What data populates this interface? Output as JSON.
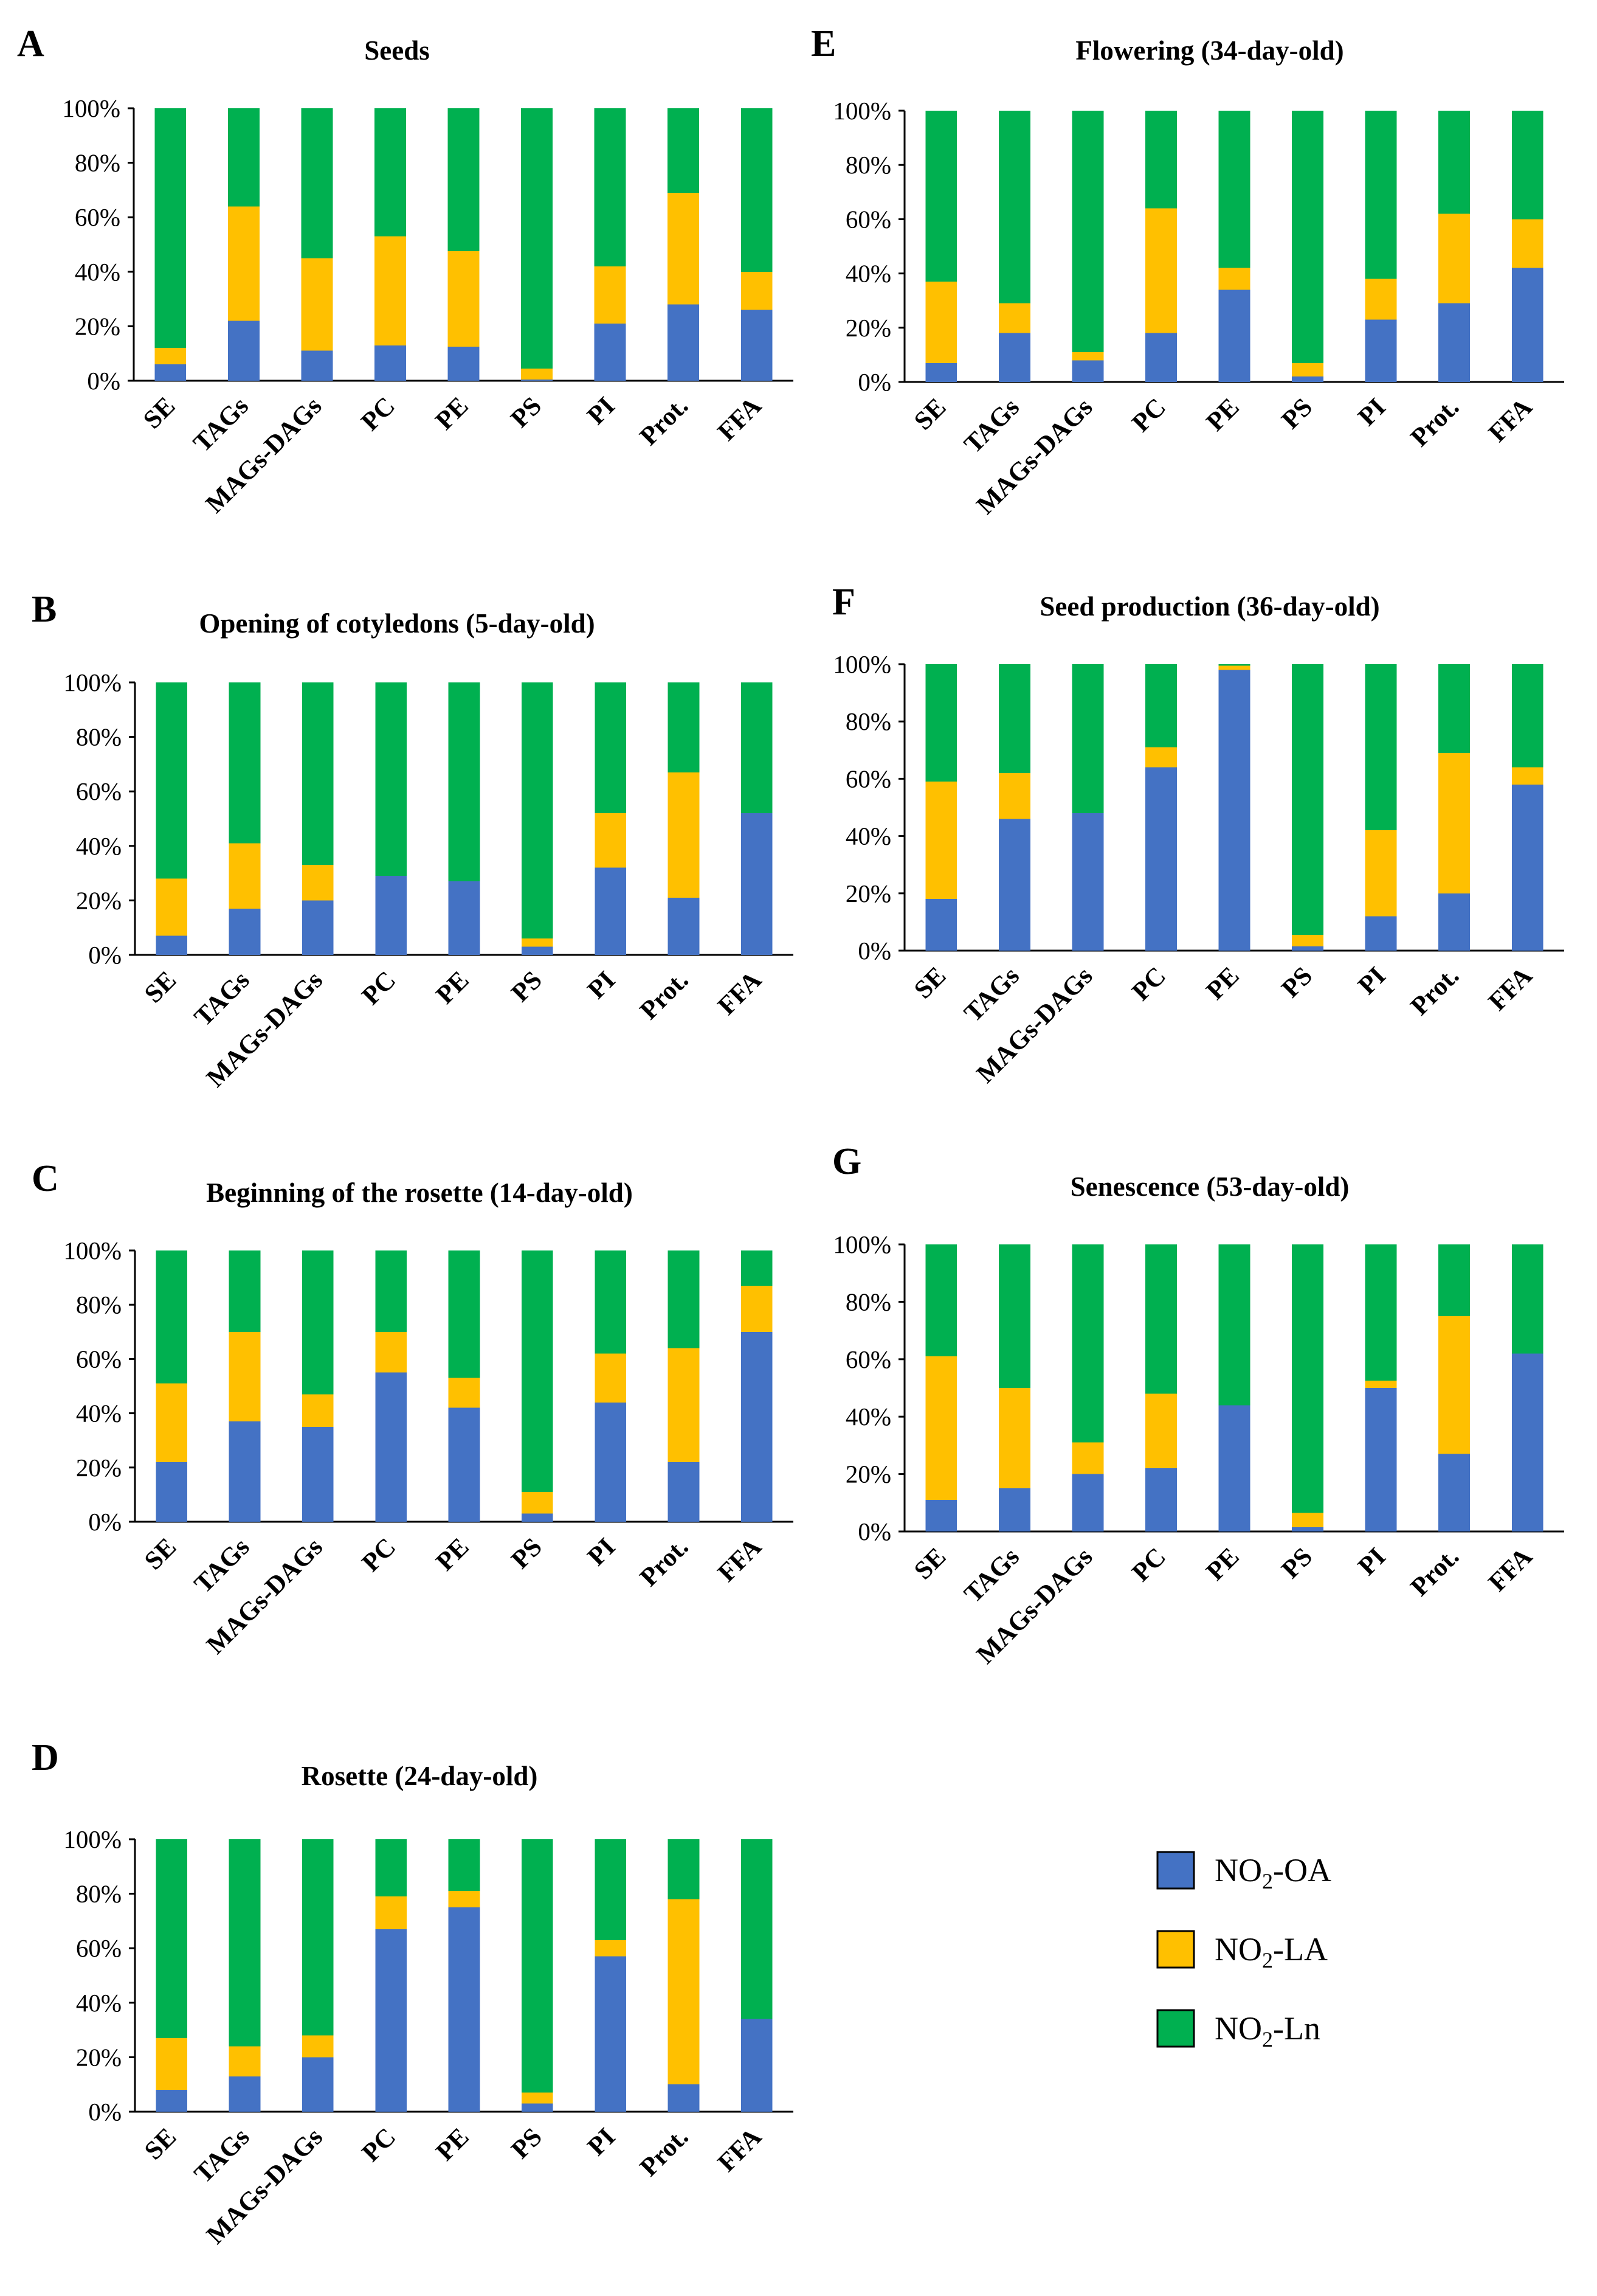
{
  "chart_data": [
    {
      "letter": "A",
      "title": "Seeds",
      "type": "bar",
      "stacked": true,
      "categories": [
        "SE",
        "TAGs",
        "MAGs-DAGs",
        "PC",
        "PE",
        "PS",
        "PI",
        "Prot.",
        "FFA"
      ],
      "yticks": [
        "0%",
        "20%",
        "40%",
        "60%",
        "80%",
        "100%"
      ],
      "ylim": [
        0,
        100
      ],
      "series": [
        {
          "name": "NO2-OA",
          "values": [
            6,
            22,
            11,
            13,
            12.5,
            0.5,
            21,
            28,
            26
          ]
        },
        {
          "name": "NO2-LA",
          "values": [
            6,
            42,
            34,
            40,
            35,
            4,
            21,
            41,
            14
          ]
        },
        {
          "name": "NO2-Ln",
          "values": [
            88,
            36,
            55,
            47,
            52.5,
            95.5,
            58,
            31,
            60
          ]
        }
      ]
    },
    {
      "letter": "B",
      "title": "Opening of cotyledons (5-day-old)",
      "type": "bar",
      "stacked": true,
      "categories": [
        "SE",
        "TAGs",
        "MAGs-DAGs",
        "PC",
        "PE",
        "PS",
        "PI",
        "Prot.",
        "FFA"
      ],
      "yticks": [
        "0%",
        "20%",
        "40%",
        "60%",
        "80%",
        "100%"
      ],
      "ylim": [
        0,
        100
      ],
      "series": [
        {
          "name": "NO2-OA",
          "values": [
            7,
            17,
            20,
            29,
            27,
            3,
            32,
            21,
            52
          ]
        },
        {
          "name": "NO2-LA",
          "values": [
            21,
            24,
            13,
            0,
            0,
            3,
            20,
            46,
            0
          ]
        },
        {
          "name": "NO2-Ln",
          "values": [
            72,
            59,
            67,
            71,
            73,
            94,
            48,
            33,
            48
          ]
        }
      ]
    },
    {
      "letter": "C",
      "title": "Beginning of the rosette (14-day-old)",
      "type": "bar",
      "stacked": true,
      "categories": [
        "SE",
        "TAGs",
        "MAGs-DAGs",
        "PC",
        "PE",
        "PS",
        "PI",
        "Prot.",
        "FFA"
      ],
      "yticks": [
        "0%",
        "20%",
        "40%",
        "60%",
        "80%",
        "100%"
      ],
      "ylim": [
        0,
        100
      ],
      "series": [
        {
          "name": "NO2-OA",
          "values": [
            22,
            37,
            35,
            55,
            42,
            3,
            44,
            22,
            70
          ]
        },
        {
          "name": "NO2-LA",
          "values": [
            29,
            33,
            12,
            15,
            11,
            8,
            18,
            42,
            17
          ]
        },
        {
          "name": "NO2-Ln",
          "values": [
            49,
            30,
            53,
            30,
            47,
            89,
            38,
            36,
            13
          ]
        }
      ]
    },
    {
      "letter": "D",
      "title": "Rosette (24-day-old)",
      "type": "bar",
      "stacked": true,
      "categories": [
        "SE",
        "TAGs",
        "MAGs-DAGs",
        "PC",
        "PE",
        "PS",
        "PI",
        "Prot.",
        "FFA"
      ],
      "yticks": [
        "0%",
        "20%",
        "40%",
        "60%",
        "80%",
        "100%"
      ],
      "ylim": [
        0,
        100
      ],
      "series": [
        {
          "name": "NO2-OA",
          "values": [
            8,
            13,
            20,
            67,
            75,
            3,
            57,
            10,
            34
          ]
        },
        {
          "name": "NO2-LA",
          "values": [
            19,
            11,
            8,
            12,
            6,
            4,
            6,
            68,
            0
          ]
        },
        {
          "name": "NO2-Ln",
          "values": [
            73,
            76,
            72,
            21,
            19,
            93,
            37,
            22,
            66
          ]
        }
      ]
    },
    {
      "letter": "E",
      "title": "Flowering (34-day-old)",
      "type": "bar",
      "stacked": true,
      "categories": [
        "SE",
        "TAGs",
        "MAGs-DAGs",
        "PC",
        "PE",
        "PS",
        "PI",
        "Prot.",
        "FFA"
      ],
      "yticks": [
        "0%",
        "20%",
        "40%",
        "60%",
        "80%",
        "100%"
      ],
      "ylim": [
        0,
        100
      ],
      "series": [
        {
          "name": "NO2-OA",
          "values": [
            7,
            18,
            8,
            18,
            34,
            2,
            23,
            29,
            42
          ]
        },
        {
          "name": "NO2-LA",
          "values": [
            30,
            11,
            3,
            46,
            8,
            5,
            15,
            33,
            18
          ]
        },
        {
          "name": "NO2-Ln",
          "values": [
            63,
            71,
            89,
            36,
            58,
            93,
            62,
            38,
            40
          ]
        }
      ]
    },
    {
      "letter": "F",
      "title": "Seed production (36-day-old)",
      "type": "bar",
      "stacked": true,
      "categories": [
        "SE",
        "TAGs",
        "MAGs-DAGs",
        "PC",
        "PE",
        "PS",
        "PI",
        "Prot.",
        "FFA"
      ],
      "yticks": [
        "0%",
        "20%",
        "40%",
        "60%",
        "80%",
        "100%"
      ],
      "ylim": [
        0,
        100
      ],
      "series": [
        {
          "name": "NO2-OA",
          "values": [
            18,
            46,
            48,
            64,
            98,
            1.5,
            12,
            20,
            58
          ]
        },
        {
          "name": "NO2-LA",
          "values": [
            41,
            16,
            0,
            7,
            1.5,
            4,
            30,
            49,
            6
          ]
        },
        {
          "name": "NO2-Ln",
          "values": [
            41,
            38,
            52,
            29,
            0.5,
            94.5,
            58,
            31,
            36
          ]
        }
      ]
    },
    {
      "letter": "G",
      "title": "Senescence (53-day-old)",
      "type": "bar",
      "stacked": true,
      "categories": [
        "SE",
        "TAGs",
        "MAGs-DAGs",
        "PC",
        "PE",
        "PS",
        "PI",
        "Prot.",
        "FFA"
      ],
      "yticks": [
        "0%",
        "20%",
        "40%",
        "60%",
        "80%",
        "100%"
      ],
      "ylim": [
        0,
        100
      ],
      "series": [
        {
          "name": "NO2-OA",
          "values": [
            11,
            15,
            20,
            22,
            44,
            1.5,
            50,
            27,
            62
          ]
        },
        {
          "name": "NO2-LA",
          "values": [
            50,
            35,
            11,
            26,
            0,
            5,
            2.5,
            48,
            0
          ]
        },
        {
          "name": "NO2-Ln",
          "values": [
            39,
            50,
            69,
            52,
            56,
            93.5,
            47.5,
            25,
            38
          ]
        }
      ]
    }
  ],
  "legend": {
    "items": [
      {
        "prefix": "NO",
        "sub": "2",
        "suffix": "-OA",
        "color": "#4472C4"
      },
      {
        "prefix": "NO",
        "sub": "2",
        "suffix": "-LA",
        "color": "#FFC000"
      },
      {
        "prefix": "NO",
        "sub": "2",
        "suffix": "-Ln",
        "color": "#00B050"
      }
    ]
  },
  "colors": {
    "NO2-OA": "#4472C4",
    "NO2-LA": "#FFC000",
    "NO2-Ln": "#00B050"
  }
}
